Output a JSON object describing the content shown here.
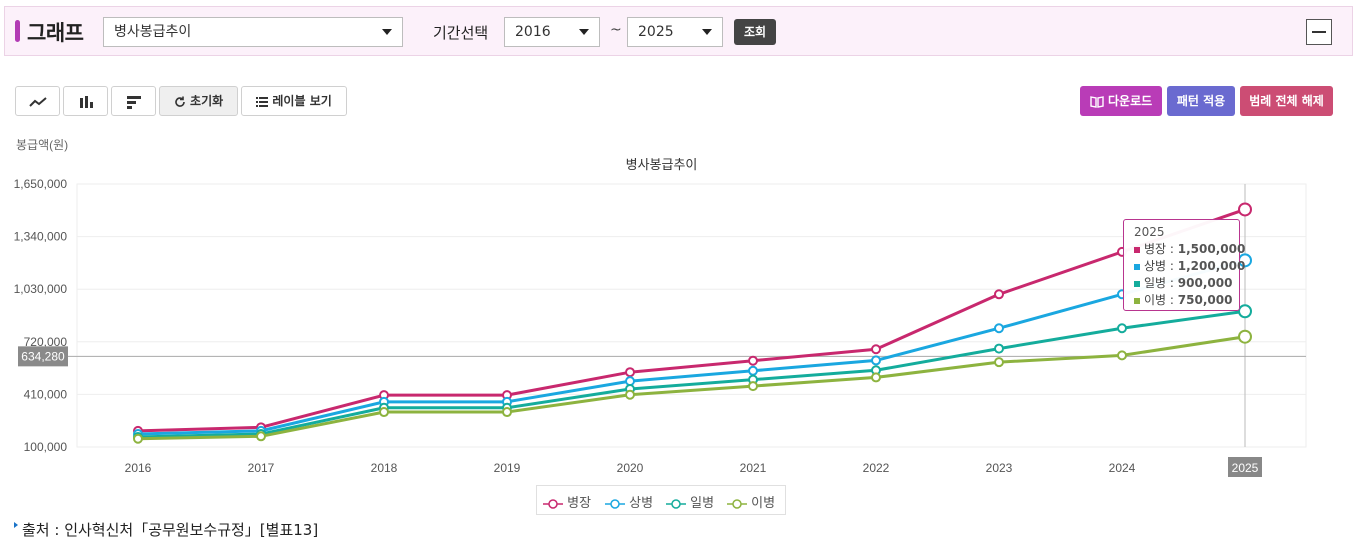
{
  "header": {
    "title": "그래프",
    "graph_select": "병사봉급추이",
    "period_label": "기간선택",
    "from_year": "2016",
    "tilde": "~",
    "to_year": "2025",
    "query_label": "조회"
  },
  "toolbar": {
    "reset_label": "초기화",
    "label_view": "레이블 보기",
    "download_label": "다운로드",
    "pattern_label": "패턴 적용",
    "legend_off_label": "범례 전체 해제"
  },
  "colors": {
    "download": "#b93cb7",
    "pattern": "#6a6ad0",
    "legend_off": "#cc4d74"
  },
  "chart_data": {
    "type": "line",
    "title": "병사봉급추이",
    "ylabel": "봉급액(원)",
    "xlabel": "",
    "categories": [
      "2016",
      "2017",
      "2018",
      "2019",
      "2020",
      "2021",
      "2022",
      "2023",
      "2024",
      "2025"
    ],
    "ylim": [
      100000,
      1650000
    ],
    "yticks": [
      "100,000",
      "410,000",
      "720,000",
      "1,030,000",
      "1,340,000",
      "1,650,000"
    ],
    "crosshair_value": 634280,
    "crosshair_label": "634,280",
    "highlight_category": "2025",
    "series": [
      {
        "name": "병장",
        "color": "#c8286e",
        "values": [
          195000,
          216000,
          405700,
          405700,
          540900,
          608500,
          676100,
          1000000,
          1250000,
          1500000
        ]
      },
      {
        "name": "상병",
        "color": "#1aa7e0",
        "values": [
          176400,
          195000,
          366200,
          366200,
          488200,
          549200,
          610200,
          800000,
          1000000,
          1200000
        ]
      },
      {
        "name": "일병",
        "color": "#14ac9c",
        "values": [
          159300,
          176400,
          331300,
          331300,
          441700,
          496900,
          552100,
          680000,
          800000,
          900000
        ]
      },
      {
        "name": "이병",
        "color": "#8db33f",
        "values": [
          148800,
          163000,
          306100,
          306100,
          408100,
          459100,
          510100,
          600000,
          640000,
          750000
        ]
      }
    ],
    "tooltip": {
      "year": "2025",
      "rows": [
        {
          "name": "병장",
          "value": "1,500,000"
        },
        {
          "name": "상병",
          "value": "1,200,000"
        },
        {
          "name": "일병",
          "value": "900,000"
        },
        {
          "name": "이병",
          "value": "750,000"
        }
      ]
    },
    "legend_position": "bottom-center"
  },
  "source": {
    "label": "출처 : 인사혁신처「공무원보수규정」[별표13]"
  }
}
